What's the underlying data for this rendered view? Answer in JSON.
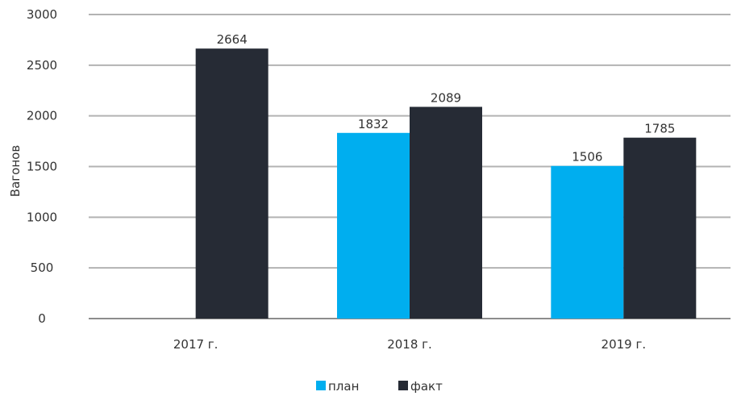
{
  "chart_data": {
    "type": "bar",
    "categories": [
      "2017 г.",
      "2018 г.",
      "2019 г."
    ],
    "series": [
      {
        "name": "план",
        "color": "#00AEEF",
        "values": [
          null,
          1832,
          1506
        ]
      },
      {
        "name": "факт",
        "color": "#262B35",
        "values": [
          2664,
          2089,
          1785
        ]
      }
    ],
    "title": "",
    "xlabel": "",
    "ylabel": "Вагонов",
    "ylim": [
      0,
      3000
    ],
    "yticks": [
      0,
      500,
      1000,
      1500,
      2000,
      2500,
      3000
    ],
    "grid": true,
    "legend_position": "bottom"
  }
}
